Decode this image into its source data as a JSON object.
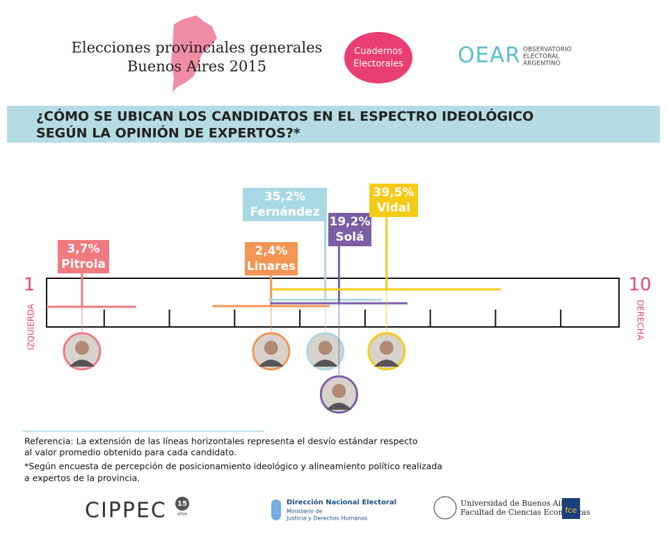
{
  "header": {
    "title_lines": [
      "Elecciones provinciales generales",
      "Buenos Aires 2015"
    ],
    "badge_lines": [
      "Cuadernos",
      "Electorales"
    ],
    "oear": "OEAR",
    "oear_lines": [
      "OBSERVATORIO",
      "ELECTORAL",
      "ARGENTINO"
    ]
  },
  "chart_data": {
    "type": "range",
    "title_lines": [
      "¿CÓMO SE UBICAN LOS CANDIDATOS EN EL ESPECTRO IDEOLÓGICO",
      "SEGÚN LA OPINIÓN DE EXPERTOS?*"
    ],
    "xlim": [
      1,
      10
    ],
    "xticks": [
      2,
      3,
      4,
      5,
      6,
      7,
      8,
      9
    ],
    "left_label": "IZQUIERDA",
    "right_label": "DERECHA",
    "series": [
      {
        "name": "Pitrola",
        "color": "#ef7a80",
        "value": 3.7,
        "value_label": "3,7%",
        "x": 1.66,
        "error": 0.83
      },
      {
        "name": "Linares",
        "color": "#f39554",
        "value": 2.4,
        "value_label": "2,4%",
        "x": 4.56,
        "error": 0.9
      },
      {
        "name": "Fernández",
        "color": "#a9d8e4",
        "value": 35.2,
        "value_label": "35,2%",
        "x": 5.39,
        "error": 0.87
      },
      {
        "name": "Solá",
        "color": "#7b5ea6",
        "value": 19.2,
        "value_label": "19,2%",
        "x": 5.6,
        "error": 1.05
      },
      {
        "name": "Vidal",
        "color": "#f5cb17",
        "value": 39.5,
        "value_label": "39,5%",
        "x": 6.33,
        "error": 1.75
      }
    ]
  },
  "notes": {
    "reference": [
      "Referencia:  La extensión de las líneas horizontales representa el desvío estándar respecto",
      "al valor promedio obtenido para cada candidato."
    ],
    "footnote": [
      "*Según encuesta de percepción de posicionamiento ideológico y alineamiento político realizada",
      "a expertos de la provincia."
    ]
  },
  "footer": {
    "cippec": "CIPPEC",
    "cippec_years": "15",
    "cippec_years_word": "años",
    "dne": "Dirección Nacional Electoral",
    "dne_sub": [
      "Ministerio de",
      "Justicia y Derechos Humanos"
    ],
    "uba": [
      "Universidad de Buenos Aires",
      "Facultad de Ciencias Económicas"
    ],
    "fce": "fce"
  }
}
